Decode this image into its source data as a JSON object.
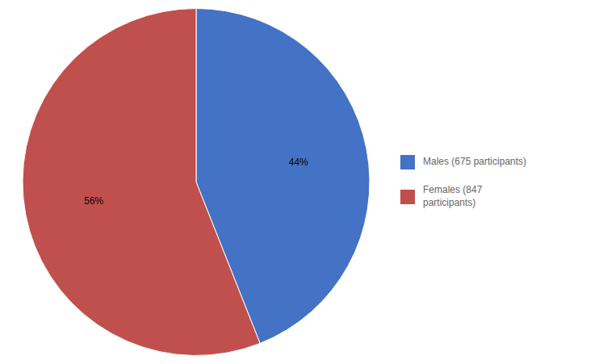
{
  "chart_data": {
    "type": "pie",
    "categories": [
      "Males (675 participants)",
      "Females (847\nparticipants)"
    ],
    "values": [
      44,
      56
    ],
    "value_labels": [
      "44%",
      "56%"
    ],
    "colors": [
      "#4472C4",
      "#C0504D"
    ],
    "data_labels": true,
    "legend": "right"
  }
}
